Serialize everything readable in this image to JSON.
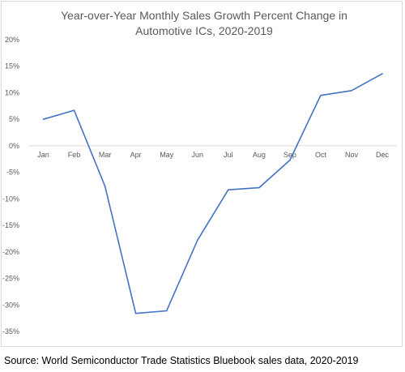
{
  "chart_data": {
    "type": "line",
    "title": "Year-over-Year Monthly Sales Growth Percent Change in Automotive ICs, 2020-2019",
    "categories": [
      "Jan",
      "Feb",
      "Mar",
      "Apr",
      "May",
      "Jun",
      "Jul",
      "Aug",
      "Sep",
      "Oct",
      "Nov",
      "Dec"
    ],
    "series": [
      {
        "values": [
          5.0,
          6.7,
          -7.6,
          -31.6,
          -31.1,
          -17.8,
          -8.3,
          -7.9,
          -2.7,
          9.5,
          10.4,
          13.6
        ]
      }
    ],
    "ylim": [
      -35,
      20
    ],
    "yticks": [
      "20%",
      "15%",
      "10%",
      "5%",
      "0%",
      "-5%",
      "-10%",
      "-15%",
      "-20%",
      "-25%",
      "-30%",
      "-35%"
    ],
    "grid": false,
    "line_color": "#4472c4",
    "axis_color": "#d9d9d9"
  },
  "source_text": "Source: World Semiconductor Trade Statistics Bluebook sales data, 2020-2019"
}
